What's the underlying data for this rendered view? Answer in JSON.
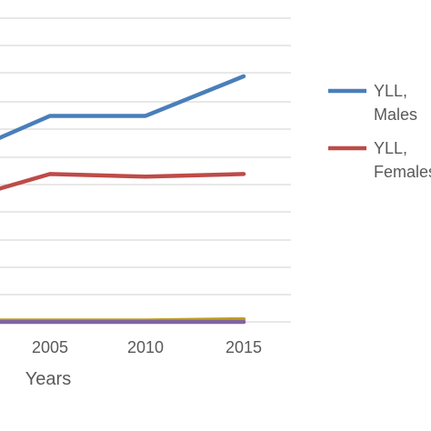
{
  "chart_data": {
    "type": "line",
    "xlabel": "Years",
    "ylabel": "",
    "x_tick_labels": [
      "2005",
      "2010",
      "2015"
    ],
    "x_range": [
      2000,
      2017
    ],
    "ylim": [
      0,
      11.5
    ],
    "grid": true,
    "legend_position": "right",
    "series": [
      {
        "name": "YLL, Males",
        "legend_lines": [
          "YLL,",
          "Males"
        ],
        "color": "#4a7ebb",
        "x": [
          2000,
          2005,
          2010,
          2015
        ],
        "y": [
          6.9,
          7.8,
          7.8,
          9.3
        ]
      },
      {
        "name": "YLL, Females",
        "legend_lines": [
          "YLL,",
          "Females"
        ],
        "color": "#be4b48",
        "x": [
          2000,
          2005,
          2010,
          2015
        ],
        "y": [
          5.0,
          5.6,
          5.5,
          5.6
        ]
      },
      {
        "name": "",
        "color": "#c0a020",
        "x": [
          2000,
          2005,
          2010,
          2015
        ],
        "y": [
          0.05,
          0.05,
          0.05,
          0.1
        ]
      },
      {
        "name": "",
        "color": "#8064a2",
        "x": [
          2000,
          2005,
          2010,
          2015
        ],
        "y": [
          0.0,
          0.0,
          0.0,
          0.0
        ]
      }
    ]
  }
}
